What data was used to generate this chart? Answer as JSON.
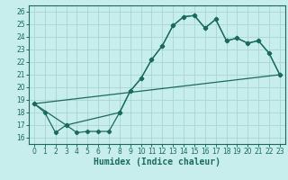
{
  "xlabel": "Humidex (Indice chaleur)",
  "bg_color": "#c8eded",
  "grid_color": "#a8d4d4",
  "line_color": "#1a6b5a",
  "spine_color": "#1a6b5a",
  "xlim": [
    -0.5,
    23.5
  ],
  "ylim": [
    15.5,
    26.5
  ],
  "xticks": [
    0,
    1,
    2,
    3,
    4,
    5,
    6,
    7,
    8,
    9,
    10,
    11,
    12,
    13,
    14,
    15,
    16,
    17,
    18,
    19,
    20,
    21,
    22,
    23
  ],
  "yticks": [
    16,
    17,
    18,
    19,
    20,
    21,
    22,
    23,
    24,
    25,
    26
  ],
  "line1_x": [
    0,
    1,
    2,
    3,
    4,
    5,
    6,
    7,
    8,
    9,
    10,
    11,
    12,
    13,
    14,
    15,
    16,
    17,
    18,
    19,
    20,
    21,
    22,
    23
  ],
  "line1_y": [
    18.7,
    18.0,
    16.4,
    17.0,
    16.4,
    16.5,
    16.5,
    16.5,
    18.0,
    19.7,
    20.7,
    22.2,
    23.3,
    24.9,
    25.6,
    25.7,
    24.7,
    25.4,
    23.7,
    23.9,
    23.5,
    23.7,
    22.7,
    21.0
  ],
  "line2_x": [
    0,
    3,
    8,
    9,
    10,
    11,
    12,
    13,
    14,
    15,
    16,
    17,
    18,
    19,
    20,
    21,
    22,
    23
  ],
  "line2_y": [
    18.7,
    17.0,
    18.0,
    19.7,
    20.7,
    22.2,
    23.3,
    24.9,
    25.6,
    25.7,
    24.7,
    25.4,
    23.7,
    23.9,
    23.5,
    23.7,
    22.7,
    21.0
  ],
  "line3_x": [
    0,
    23
  ],
  "line3_y": [
    18.7,
    21.0
  ]
}
